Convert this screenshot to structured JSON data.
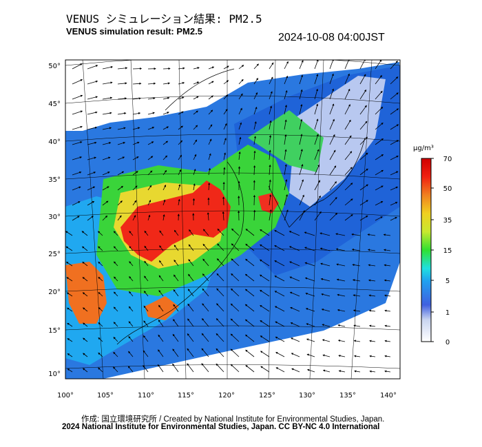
{
  "header": {
    "title_ja": "VENUS シミュレーション結果: PM2.5",
    "title_en": "VENUS simulation result: PM2.5",
    "timestamp": "2024-10-08 04:00JST"
  },
  "colorbar": {
    "unit": "μg/m³",
    "ticks": [
      "0",
      "1",
      "5",
      "15",
      "35",
      "50",
      "70"
    ],
    "colors": [
      "#ffffff",
      "#c8d4f0",
      "#4060e0",
      "#20a0f0",
      "#20e0e0",
      "#30e030",
      "#c8e830",
      "#f0d020",
      "#f08020",
      "#f02010",
      "#d00000"
    ]
  },
  "map": {
    "x_ticks": [
      "100°",
      "105°",
      "110°",
      "115°",
      "120°",
      "125°",
      "130°",
      "135°",
      "140°"
    ],
    "y_ticks": [
      "50°",
      "45°",
      "40°",
      "35°",
      "30°",
      "25°",
      "20°",
      "15°",
      "10°"
    ],
    "field_description": "PM2.5 concentration with wind vectors over East Asia"
  },
  "footer": {
    "credit": "作成: 国立環境研究所 / Created by National Institute for Environmental Studies, Japan.",
    "license": "2024 National Institute for Environmental Studies, Japan. CC BY-NC 4.0 International"
  }
}
